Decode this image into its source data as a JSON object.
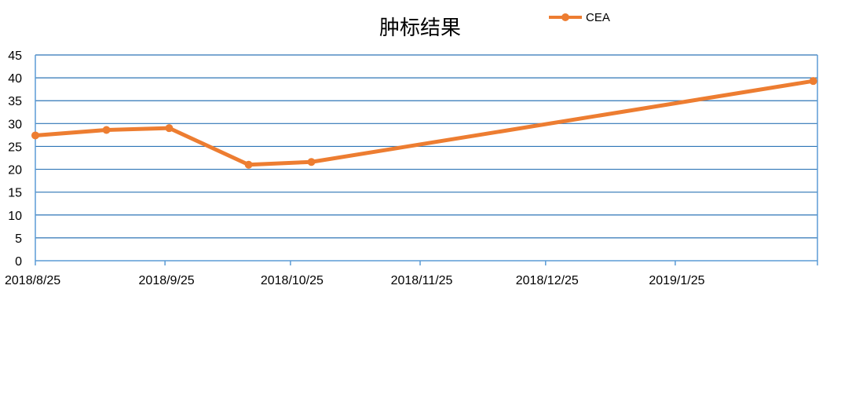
{
  "chart_data": {
    "type": "line",
    "title": "肿标结果",
    "xlabel": "",
    "ylabel": "",
    "x_axis": "date",
    "xlim": [
      "2018-08-25",
      "2019-02-28"
    ],
    "ylim": [
      0,
      45
    ],
    "yticks": [
      0,
      5,
      10,
      15,
      20,
      25,
      30,
      35,
      40,
      45
    ],
    "xticks": [
      {
        "date": "2018-08-25",
        "label": "2018/8/25"
      },
      {
        "date": "2018-09-25",
        "label": "2018/9/25"
      },
      {
        "date": "2018-10-25",
        "label": "2018/10/25"
      },
      {
        "date": "2018-11-25",
        "label": "2018/11/25"
      },
      {
        "date": "2018-12-25",
        "label": "2018/12/25"
      },
      {
        "date": "2019-01-25",
        "label": "2019/1/25"
      }
    ],
    "grid": true,
    "legend": "top-right",
    "series": [
      {
        "name": "CEA",
        "color": "#ED7D31",
        "points": [
          {
            "x": "2018-08-25",
            "y": 27.4
          },
          {
            "x": "2018-09-11",
            "y": 28.6
          },
          {
            "x": "2018-09-26",
            "y": 29.0
          },
          {
            "x": "2018-10-15",
            "y": 21.0
          },
          {
            "x": "2018-10-30",
            "y": 21.6
          },
          {
            "x": "2019-02-27",
            "y": 39.3
          }
        ]
      }
    ],
    "gridline_color": "#2E75B6",
    "axis_color": "#5B9BD5"
  }
}
